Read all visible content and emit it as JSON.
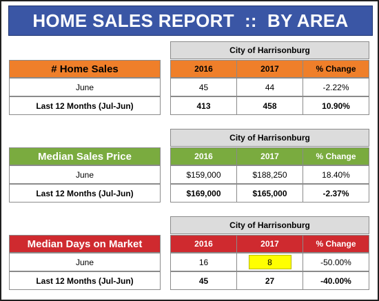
{
  "banner": {
    "title": "HOME SALES REPORT  ::  BY AREA"
  },
  "colors": {
    "banner": "#3a56a5",
    "orange": "#ef7f2a",
    "green": "#7aab3f",
    "red": "#cf2a2f",
    "highlight": "#ffff00",
    "header_grey": "#dcdcdc"
  },
  "tables": [
    {
      "title": "# Home Sales",
      "area": "City of Harrisonburg",
      "columns": [
        "2016",
        "2017",
        "% Change"
      ],
      "rows": [
        {
          "label": "June",
          "values": [
            "45",
            "44",
            "-2.22%"
          ]
        },
        {
          "label": "Last 12 Months (Jul-Jun)",
          "values": [
            "413",
            "458",
            "10.90%"
          ]
        }
      ]
    },
    {
      "title": "Median Sales Price",
      "area": "City of Harrisonburg",
      "columns": [
        "2016",
        "2017",
        "% Change"
      ],
      "rows": [
        {
          "label": "June",
          "values": [
            "$159,000",
            "$188,250",
            "18.40%"
          ]
        },
        {
          "label": "Last 12 Months (Jul-Jun)",
          "values": [
            "$169,000",
            "$165,000",
            "-2.37%"
          ]
        }
      ]
    },
    {
      "title": "Median Days on Market",
      "area": "City of Harrisonburg",
      "columns": [
        "2016",
        "2017",
        "% Change"
      ],
      "rows": [
        {
          "label": "June",
          "values": [
            "16",
            "8",
            "-50.00%"
          ]
        },
        {
          "label": "Last 12 Months (Jul-Jun)",
          "values": [
            "45",
            "27",
            "-40.00%"
          ]
        }
      ]
    }
  ]
}
